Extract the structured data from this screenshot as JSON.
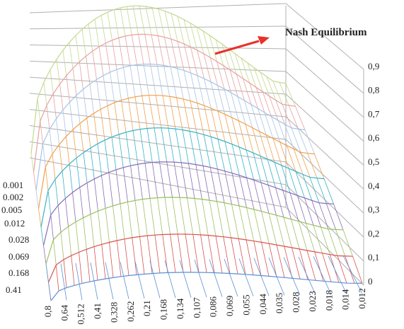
{
  "chart_data": {
    "type": "surface-3d",
    "title": "",
    "annotation": "Nash Equilibrium",
    "z_ticks": [
      "0",
      "0,1",
      "0,2",
      "0,3",
      "0,4",
      "0,5",
      "0,6",
      "0,7",
      "0,8",
      "0,9"
    ],
    "z_range": [
      0,
      0.9
    ],
    "y_ticks": [
      "0.41",
      "0.168",
      "0.069",
      "0.028",
      "0.012",
      "0.005",
      "0.002",
      "0.001"
    ],
    "x_ticks": [
      "0,8",
      "0,64",
      "0,512",
      "0,41",
      "0,328",
      "0,262",
      "0,21",
      "0,168",
      "0,134",
      "0,107",
      "0,086",
      "0,069",
      "0,055",
      "0,044",
      "0,035",
      "0,028",
      "0,023",
      "0,018",
      "0,014",
      "0,012"
    ],
    "series_colors": [
      "#5b8fd4",
      "#d9534f",
      "#9bc060",
      "#8a6bb8",
      "#35b2c8",
      "#f0a04b",
      "#a7c4e8",
      "#e8a0a0",
      "#c3d98e"
    ],
    "grid": true,
    "annotation_arrow_color": "#e8312a",
    "surface_peak": 0.86
  }
}
